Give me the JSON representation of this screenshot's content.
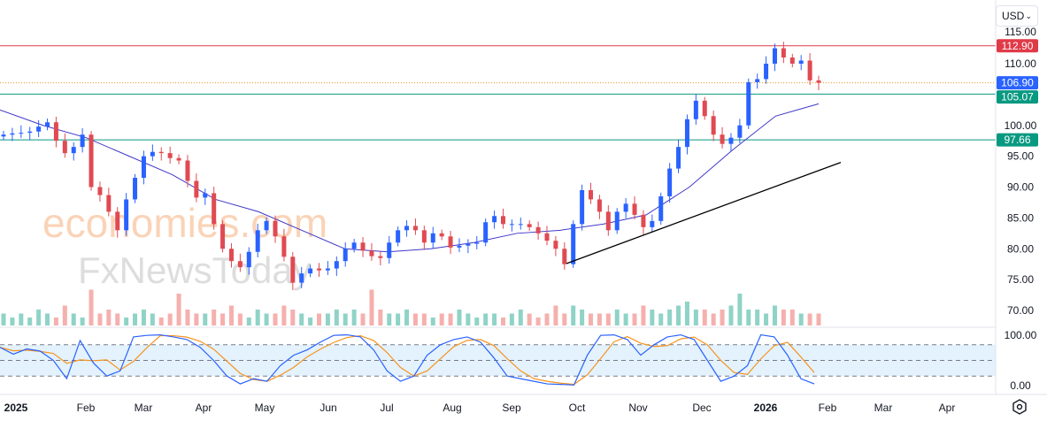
{
  "currency_selector": {
    "value": "USD",
    "icon": "chevron-down-icon"
  },
  "settings_icon": "hexagon-gear-icon",
  "watermark": {
    "line1": "economies.com",
    "line2": "FxNewsToday"
  },
  "colors": {
    "up": "#2962ff",
    "down": "#e04a52",
    "ma": "#3f37c9",
    "stoch_k": "#2962ff",
    "stoch_d": "#f7931e",
    "resistance": "#e03a48",
    "support": "#089981",
    "last_price": "#2962ff",
    "trendline": "#000000",
    "vol_up": "#8fd3c6",
    "vol_down": "#f5b0ae",
    "band": "#e3f2fd"
  },
  "chart_data": {
    "type": "candlestick",
    "price_axis": {
      "ticks": [
        "115.00",
        "110.00",
        "100.00",
        "95.00",
        "90.00",
        "85.00",
        "80.00",
        "75.00",
        "70.00"
      ],
      "range": [
        69,
        115
      ]
    },
    "time_axis": {
      "ticks": [
        "2025",
        "Feb",
        "Mar",
        "Apr",
        "May",
        "Jun",
        "Jul",
        "Aug",
        "Sep",
        "Oct",
        "Nov",
        "Dec",
        "2026",
        "Feb",
        "Mar",
        "Apr"
      ]
    },
    "closes": [
      98.5,
      98.7,
      98.8,
      99,
      99.8,
      100.5,
      97.5,
      95.5,
      96.5,
      98.5,
      90,
      88.7,
      86,
      83,
      88,
      91.5,
      95,
      95.7,
      95.5,
      94.7,
      94.3,
      91,
      88.3,
      89,
      84,
      80,
      78,
      77,
      79.5,
      83,
      84.5,
      82,
      78.7,
      74.5,
      76,
      76.8,
      76.5,
      76.8,
      78,
      80,
      81,
      79.7,
      78.8,
      78.5,
      81,
      83,
      83.7,
      83,
      81,
      82.5,
      82,
      80.2,
      80.5,
      80.8,
      81,
      84.3,
      85.3,
      84,
      84,
      84,
      83.5,
      82.5,
      81.3,
      80,
      77.5,
      84,
      89.5,
      88,
      86,
      83,
      86,
      87.3,
      85.5,
      83.5,
      84.5,
      88.5,
      93,
      96.5,
      101,
      104,
      101.5,
      98.5,
      97,
      98,
      100,
      107,
      107.5,
      110,
      112.5,
      111,
      110,
      110.5,
      107.3,
      106.9
    ],
    "moving_average": [
      102.5,
      100,
      98,
      95,
      92,
      88,
      86,
      83,
      80,
      79.5,
      80,
      81,
      82.5,
      83,
      84,
      85.5,
      90,
      96,
      101.5,
      103.5
    ],
    "volume_relative": [
      3,
      2,
      3,
      2,
      4,
      3,
      2,
      5,
      3,
      2,
      9,
      3,
      4,
      3,
      2,
      3,
      4,
      3,
      2,
      3,
      8,
      4,
      3,
      3,
      4,
      3,
      5,
      3,
      2,
      4,
      3,
      3,
      5,
      4,
      3,
      2,
      3,
      3,
      4,
      3,
      4,
      3,
      9,
      4,
      3,
      3,
      4,
      3,
      3,
      2,
      3,
      3,
      4,
      3,
      2,
      3,
      3,
      2,
      3,
      4,
      3,
      2,
      3,
      5,
      3,
      5,
      4,
      3,
      3,
      3,
      4,
      3,
      3,
      5,
      4,
      3,
      4,
      5,
      6,
      4,
      4,
      3,
      4,
      5,
      8,
      4,
      4,
      3,
      5,
      4,
      4,
      3,
      3,
      3
    ],
    "horizontal_levels": [
      {
        "value": 112.9,
        "label": "112.90",
        "kind": "resistance"
      },
      {
        "value": 105.07,
        "label": "105.07",
        "kind": "support"
      },
      {
        "value": 97.66,
        "label": "97.66",
        "kind": "support"
      }
    ],
    "last_price": {
      "value": 106.9,
      "label": "106.90"
    },
    "trendline": {
      "from": 77.6,
      "to": 94.0
    },
    "stochastic": {
      "axis_ticks": [
        "100.00",
        "0.00"
      ],
      "bands": [
        20,
        50,
        80
      ],
      "k": [
        75,
        62,
        72,
        68,
        50,
        15,
        88,
        45,
        20,
        30,
        95,
        98,
        99,
        95,
        90,
        75,
        50,
        20,
        5,
        15,
        10,
        40,
        60,
        70,
        85,
        98,
        99,
        95,
        70,
        30,
        10,
        20,
        60,
        80,
        90,
        95,
        85,
        55,
        20,
        15,
        10,
        5,
        4,
        3,
        60,
        98,
        99,
        90,
        60,
        80,
        95,
        99,
        90,
        50,
        10,
        20,
        40,
        99,
        95,
        60,
        15,
        5
      ]
    }
  }
}
